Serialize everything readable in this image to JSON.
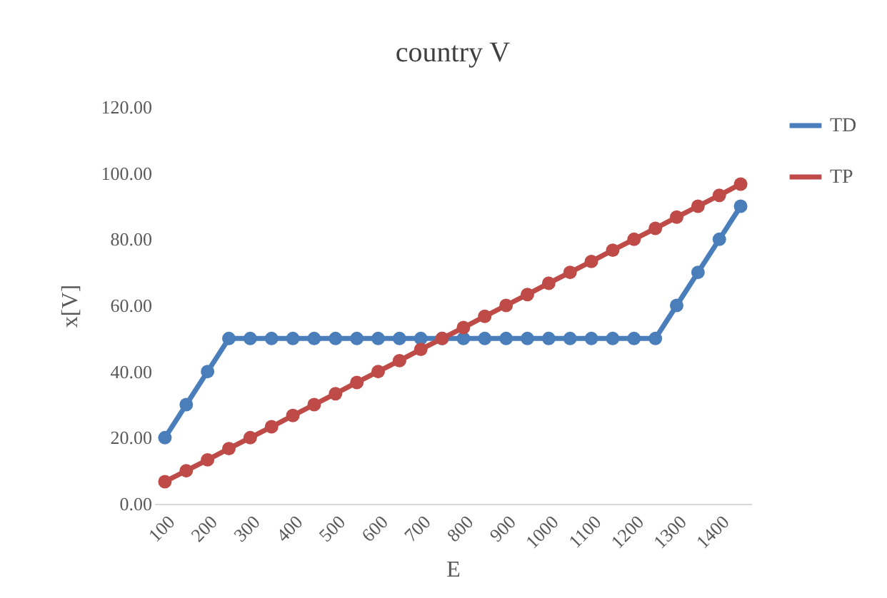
{
  "chart_data": {
    "type": "line",
    "title": "country  V",
    "xlabel": "E",
    "ylabel": "x[V]",
    "categories": [
      "100",
      null,
      "200",
      null,
      "300",
      null,
      "400",
      null,
      "500",
      null,
      "600",
      null,
      "700",
      null,
      "800",
      null,
      "900",
      null,
      "1000",
      null,
      "1100",
      null,
      "1200",
      null,
      "1300",
      null,
      "1400",
      null
    ],
    "series": [
      {
        "name": "TD",
        "color": "#4a7ebb",
        "values": [
          20,
          30,
          40,
          50,
          50,
          50,
          50,
          50,
          50,
          50,
          50,
          50,
          50,
          50,
          50,
          50,
          50,
          50,
          50,
          50,
          50,
          50,
          50,
          50,
          60,
          70,
          80,
          90
        ]
      },
      {
        "name": "TP",
        "color": "#be4b48",
        "values": [
          6.7,
          10,
          13.3,
          16.7,
          20,
          23.3,
          26.7,
          30,
          33.3,
          36.7,
          40,
          43.3,
          46.7,
          50,
          53.3,
          56.7,
          60,
          63.3,
          66.7,
          70,
          73.3,
          76.7,
          80,
          83.3,
          86.7,
          90,
          93.3,
          96.7
        ]
      }
    ],
    "ylim": [
      0,
      120
    ],
    "yticks": [
      {
        "value": 0,
        "label": "0.00"
      },
      {
        "value": 20,
        "label": "20.00"
      },
      {
        "value": 40,
        "label": "40.00"
      },
      {
        "value": 60,
        "label": "60.00"
      },
      {
        "value": 80,
        "label": "80.00"
      },
      {
        "value": 100,
        "label": "100.00"
      },
      {
        "value": 120,
        "label": "120.00"
      }
    ],
    "grid": false,
    "legend": "right",
    "marker": "circle",
    "line_style": "solid"
  }
}
